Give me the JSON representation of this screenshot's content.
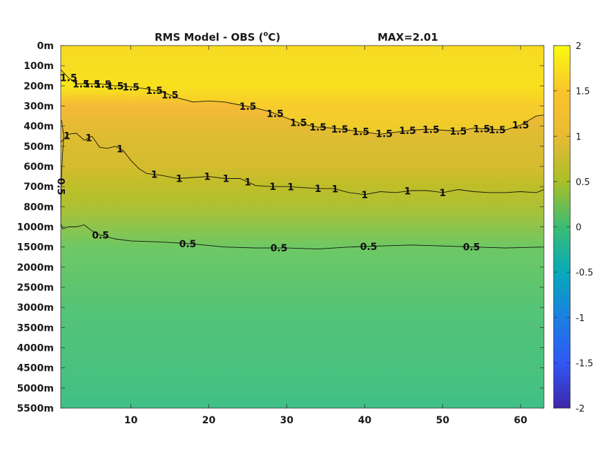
{
  "chart_data": {
    "type": "heatmap",
    "title": "RMS Model - OBS (",
    "title_sup": "o",
    "title_unit": "C)",
    "max_label": "MAX=2.01",
    "xlabel": "",
    "ylabel": "",
    "x_ticks": [
      "10",
      "20",
      "30",
      "40",
      "50",
      "60"
    ],
    "x_tick_values": [
      10,
      20,
      30,
      40,
      50,
      60
    ],
    "xlim": [
      1,
      63
    ],
    "y_ticks": [
      "0m",
      "100m",
      "200m",
      "300m",
      "400m",
      "500m",
      "600m",
      "700m",
      "800m",
      "1000m",
      "1500m",
      "2000m",
      "2500m",
      "3000m",
      "3500m",
      "4000m",
      "4500m",
      "5000m",
      "5500m"
    ],
    "colorbar": {
      "ticks": [
        "2",
        "1.5",
        "1",
        "0.5",
        "0",
        "-0.5",
        "-1",
        "-1.5",
        "-2"
      ],
      "tick_values": [
        2,
        1.5,
        1,
        0.5,
        0,
        -0.5,
        -1,
        -1.5,
        -2
      ],
      "clim": [
        -2,
        2
      ],
      "colormap": "parula"
    },
    "depth_profile_rms": [
      {
        "depth": "0m",
        "value": 1.75
      },
      {
        "depth": "100m",
        "value": 1.8
      },
      {
        "depth": "200m",
        "value": 1.85
      },
      {
        "depth": "300m",
        "value": 1.5
      },
      {
        "depth": "400m",
        "value": 1.35
      },
      {
        "depth": "500m",
        "value": 1.25
      },
      {
        "depth": "600m",
        "value": 1.2
      },
      {
        "depth": "700m",
        "value": 1.0
      },
      {
        "depth": "800m",
        "value": 0.9
      },
      {
        "depth": "1000m",
        "value": 0.7
      },
      {
        "depth": "1500m",
        "value": 0.5
      },
      {
        "depth": "2000m",
        "value": 0.45
      },
      {
        "depth": "2500m",
        "value": 0.4
      },
      {
        "depth": "3000m",
        "value": 0.35
      },
      {
        "depth": "3500m",
        "value": 0.33
      },
      {
        "depth": "4000m",
        "value": 0.3
      },
      {
        "depth": "4500m",
        "value": 0.28
      },
      {
        "depth": "5000m",
        "value": 0.25
      },
      {
        "depth": "5500m",
        "value": 0.22
      }
    ],
    "contours": [
      {
        "level": 1.5,
        "label": "1.5",
        "points": [
          [
            1,
            1.2
          ],
          [
            2,
            1.6
          ],
          [
            3,
            1.9
          ],
          [
            4,
            1.9
          ],
          [
            6,
            1.9
          ],
          [
            8,
            2.0
          ],
          [
            10,
            2.05
          ],
          [
            12,
            2.15
          ],
          [
            14,
            2.3
          ],
          [
            16,
            2.6
          ],
          [
            18,
            2.8
          ],
          [
            20,
            2.75
          ],
          [
            22,
            2.8
          ],
          [
            24,
            2.95
          ],
          [
            26,
            3.1
          ],
          [
            28,
            3.3
          ],
          [
            30,
            3.6
          ],
          [
            32,
            3.9
          ],
          [
            34,
            4.05
          ],
          [
            36,
            4.1
          ],
          [
            38,
            4.2
          ],
          [
            40,
            4.3
          ],
          [
            42,
            4.4
          ],
          [
            44,
            4.3
          ],
          [
            46,
            4.2
          ],
          [
            48,
            4.15
          ],
          [
            50,
            4.2
          ],
          [
            52,
            4.25
          ],
          [
            54,
            4.1
          ],
          [
            56,
            4.15
          ],
          [
            58,
            4.2
          ],
          [
            60,
            3.95
          ],
          [
            62,
            3.5
          ],
          [
            63,
            3.45
          ]
        ],
        "label_x": [
          2.0,
          3.6,
          5.0,
          6.4,
          8.0,
          10.0,
          13.0,
          15.0,
          25.0,
          28.5,
          31.5,
          34.0,
          36.8,
          39.5,
          42.5,
          45.5,
          48.5,
          52.0,
          55.0,
          57.0,
          60.0
        ]
      },
      {
        "level": 1,
        "label": "1",
        "points": [
          [
            1,
            4.8
          ],
          [
            2,
            4.4
          ],
          [
            3,
            4.35
          ],
          [
            4,
            4.7
          ],
          [
            5,
            4.5
          ],
          [
            6,
            5.05
          ],
          [
            7,
            5.1
          ],
          [
            8,
            5.0
          ],
          [
            9,
            5.2
          ],
          [
            10,
            5.7
          ],
          [
            11,
            6.1
          ],
          [
            12,
            6.35
          ],
          [
            14,
            6.45
          ],
          [
            16,
            6.6
          ],
          [
            18,
            6.55
          ],
          [
            20,
            6.5
          ],
          [
            22,
            6.6
          ],
          [
            24,
            6.6
          ],
          [
            26,
            6.95
          ],
          [
            28,
            7.0
          ],
          [
            30,
            7.0
          ],
          [
            32,
            7.05
          ],
          [
            34,
            7.1
          ],
          [
            36,
            7.1
          ],
          [
            38,
            7.3
          ],
          [
            40,
            7.4
          ],
          [
            42,
            7.25
          ],
          [
            44,
            7.3
          ],
          [
            46,
            7.2
          ],
          [
            48,
            7.2
          ],
          [
            50,
            7.3
          ],
          [
            52,
            7.15
          ],
          [
            54,
            7.25
          ],
          [
            56,
            7.3
          ],
          [
            58,
            7.3
          ],
          [
            60,
            7.25
          ],
          [
            62,
            7.3
          ],
          [
            63,
            7.15
          ]
        ],
        "label_x": [
          1.8,
          4.6,
          8.6,
          13.0,
          16.2,
          19.8,
          22.2,
          25.0,
          28.2,
          30.5,
          34.0,
          36.2,
          40.0,
          45.5,
          50.0
        ]
      },
      {
        "level": 0.5,
        "label": "0.5",
        "points": [
          [
            1,
            8.8
          ],
          [
            1.2,
            9.1
          ],
          [
            2,
            9.0
          ],
          [
            3,
            9.0
          ],
          [
            4,
            8.9
          ],
          [
            5,
            9.2
          ],
          [
            6,
            9.4
          ],
          [
            8,
            9.6
          ],
          [
            10,
            9.7
          ],
          [
            14,
            9.75
          ],
          [
            18,
            9.85
          ],
          [
            22,
            10.0
          ],
          [
            26,
            10.05
          ],
          [
            30,
            10.05
          ],
          [
            34,
            10.1
          ],
          [
            38,
            10.0
          ],
          [
            42,
            9.95
          ],
          [
            46,
            9.9
          ],
          [
            50,
            9.95
          ],
          [
            54,
            10.0
          ],
          [
            58,
            10.05
          ],
          [
            63,
            10.0
          ]
        ],
        "label_x": [
          6.1,
          17.3,
          29.0,
          40.5,
          53.7
        ]
      },
      {
        "level": 0.5,
        "label": "0.5",
        "points": [
          [
            1.1,
            3.7
          ],
          [
            1.4,
            4.5
          ],
          [
            1.2,
            5.5
          ],
          [
            1.05,
            7.0
          ],
          [
            1.0,
            8.8
          ]
        ],
        "label_x": [
          1.05
        ]
      }
    ]
  }
}
